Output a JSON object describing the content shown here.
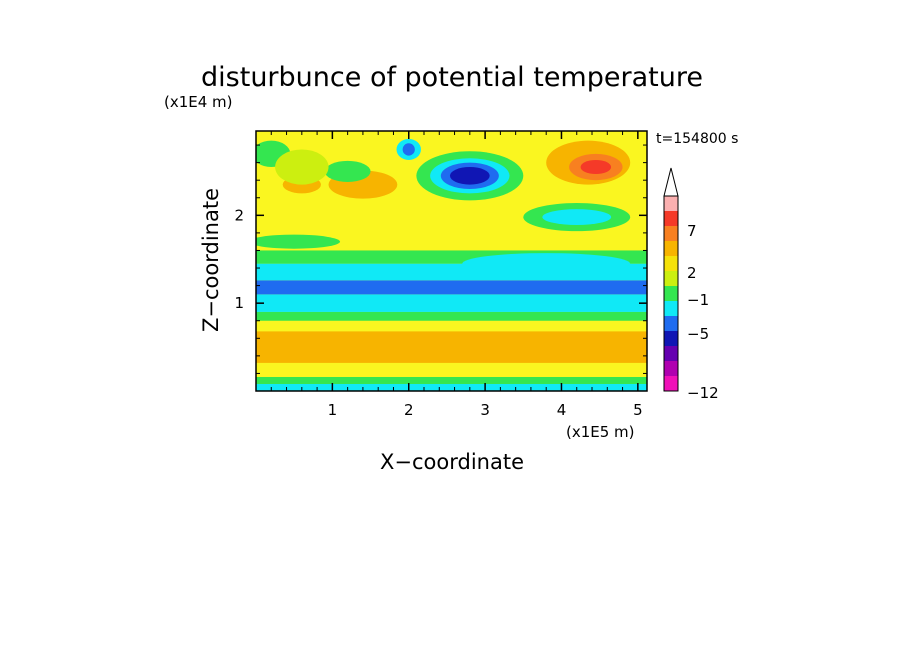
{
  "chart_data": {
    "type": "heatmap",
    "title": "disturbunce of potential temperature",
    "xlabel": "X−coordinate",
    "ylabel": "Z−coordinate",
    "x_unit": "(x1E5 m)",
    "y_unit": "(x1E4 m)",
    "time_label": "t=154800 s",
    "xlim": [
      0,
      5.12
    ],
    "ylim": [
      0,
      2.96
    ],
    "x_ticks": [
      "1",
      "2",
      "3",
      "4",
      "5"
    ],
    "y_ticks": [
      "1",
      "2"
    ],
    "colorbar": {
      "labels": [
        "7",
        "2",
        "−1",
        "−5",
        "−12"
      ],
      "colors": [
        "#fbb0b0",
        "#f53a28",
        "#f88020",
        "#f7b400",
        "#f5e20a",
        "#ccef10",
        "#34e650",
        "#10e9f6",
        "#1f6cf0",
        "#1016b4",
        "#6500b0",
        "#b000b0",
        "#f010b8"
      ]
    },
    "background_level": "#faf620",
    "bands": [
      {
        "z": [
          0.0,
          0.08
        ],
        "level": "-1",
        "color": "#10e9f6"
      },
      {
        "z": [
          0.08,
          0.16
        ],
        "level": "0",
        "color": "#34e650"
      },
      {
        "z": [
          0.16,
          0.32
        ],
        "level": "1",
        "color": "#faf620"
      },
      {
        "z": [
          0.32,
          0.68
        ],
        "level": "2",
        "color": "#f7b400"
      },
      {
        "z": [
          0.68,
          0.8
        ],
        "level": "1",
        "color": "#faf620"
      },
      {
        "z": [
          0.8,
          0.9
        ],
        "level": "0",
        "color": "#34e650"
      },
      {
        "z": [
          0.9,
          1.1
        ],
        "level": "-1",
        "color": "#10e9f6"
      },
      {
        "z": [
          1.1,
          1.26
        ],
        "level": "-3",
        "color": "#1f6cf0"
      },
      {
        "z": [
          1.26,
          1.45
        ],
        "level": "-1",
        "color": "#10e9f6"
      },
      {
        "z": [
          1.45,
          1.6
        ],
        "level": "0",
        "color": "#34e650"
      }
    ],
    "blobs": [
      {
        "x": 2.8,
        "z": 2.45,
        "rx": 0.7,
        "rz": 0.28,
        "color": "#34e650"
      },
      {
        "x": 2.8,
        "z": 2.45,
        "rx": 0.52,
        "rz": 0.2,
        "color": "#10e9f6"
      },
      {
        "x": 2.8,
        "z": 2.45,
        "rx": 0.38,
        "rz": 0.15,
        "color": "#1f6cf0"
      },
      {
        "x": 2.8,
        "z": 2.45,
        "rx": 0.26,
        "rz": 0.1,
        "color": "#1016b4"
      },
      {
        "x": 2.0,
        "z": 2.75,
        "rx": 0.16,
        "rz": 0.12,
        "color": "#10e9f6"
      },
      {
        "x": 2.0,
        "z": 2.75,
        "rx": 0.08,
        "rz": 0.07,
        "color": "#1f6cf0"
      },
      {
        "x": 4.35,
        "z": 2.6,
        "rx": 0.55,
        "rz": 0.25,
        "color": "#f7b400"
      },
      {
        "x": 4.45,
        "z": 2.55,
        "rx": 0.35,
        "rz": 0.15,
        "color": "#f88020"
      },
      {
        "x": 4.45,
        "z": 2.55,
        "rx": 0.2,
        "rz": 0.08,
        "color": "#f53a28"
      },
      {
        "x": 4.2,
        "z": 1.98,
        "rx": 0.7,
        "rz": 0.16,
        "color": "#34e650"
      },
      {
        "x": 4.2,
        "z": 1.98,
        "rx": 0.45,
        "rz": 0.09,
        "color": "#10e9f6"
      },
      {
        "x": 1.4,
        "z": 2.35,
        "rx": 0.45,
        "rz": 0.16,
        "color": "#f7b400"
      },
      {
        "x": 0.6,
        "z": 2.35,
        "rx": 0.25,
        "rz": 0.1,
        "color": "#f7b400"
      },
      {
        "x": 1.2,
        "z": 2.5,
        "rx": 0.3,
        "rz": 0.12,
        "color": "#34e650"
      },
      {
        "x": 0.5,
        "z": 1.7,
        "rx": 0.6,
        "rz": 0.08,
        "color": "#34e650"
      },
      {
        "x": 3.8,
        "z": 1.45,
        "rx": 1.1,
        "rz": 0.12,
        "color": "#10e9f6"
      },
      {
        "x": 0.2,
        "z": 2.7,
        "rx": 0.25,
        "rz": 0.15,
        "color": "#34e650"
      },
      {
        "x": 0.6,
        "z": 2.55,
        "rx": 0.35,
        "rz": 0.2,
        "color": "#ccef10"
      }
    ]
  }
}
